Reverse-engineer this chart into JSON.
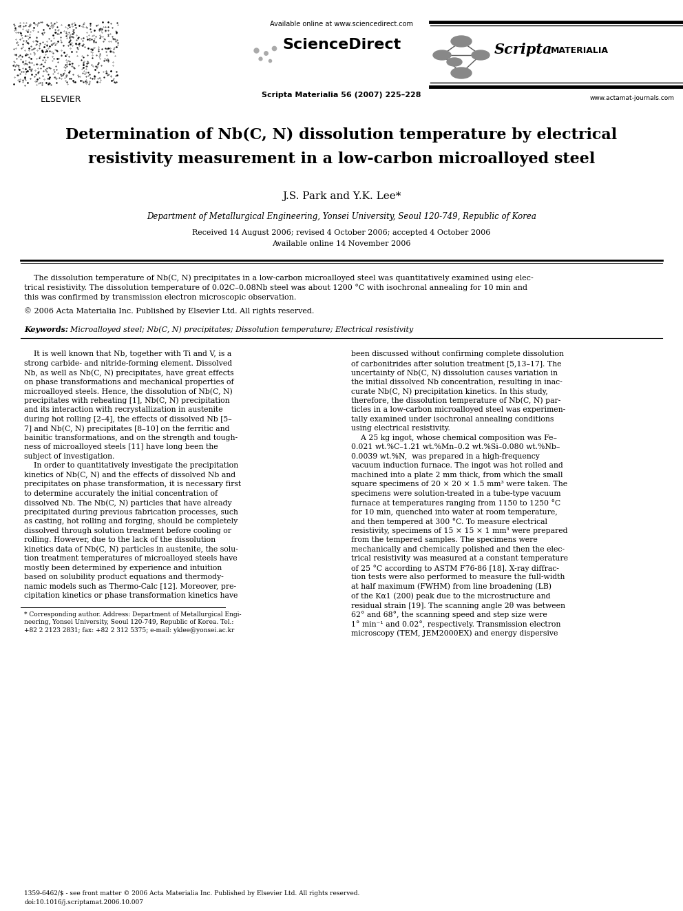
{
  "bg_color": "#ffffff",
  "page_width": 9.92,
  "page_height": 13.23,
  "dpi": 100,
  "header": {
    "available_online": "Available online at www.sciencedirect.com",
    "sciencedirect": "ScienceDirect",
    "journal_info": "Scripta Materialia 56 (2007) 225–228",
    "website": "www.actamat-journals.com",
    "elsevier_label": "ELSEVIER"
  },
  "title_line1": "Determination of Nb(C, N) dissolution temperature by electrical",
  "title_line2": "resistivity measurement in a low-carbon microalloyed steel",
  "authors": "J.S. Park and Y.K. Lee*",
  "affiliation": "Department of Metallurgical Engineering, Yonsei University, Seoul 120-749, Republic of Korea",
  "date_line1": "Received 14 August 2006; revised 4 October 2006; accepted 4 October 2006",
  "date_line2": "Available online 14 November 2006",
  "abstract_line1": "    The dissolution temperature of Nb(C, N) precipitates in a low-carbon microalloyed steel was quantitatively examined using elec-",
  "abstract_line2": "trical resistivity. The dissolution temperature of 0.02C–0.08Nb steel was about 1200 °C with isochronal annealing for 10 min and",
  "abstract_line3": "this was confirmed by transmission electron microscopic observation.",
  "abstract_line4": "© 2006 Acta Materialia Inc. Published by Elsevier Ltd. All rights reserved.",
  "keywords_label": "Keywords:",
  "keywords_text": "  Microalloyed steel; Nb(C, N) precipitates; Dissolution temperature; Electrical resistivity",
  "col1_lines": [
    "    It is well known that Nb, together with Ti and V, is a",
    "strong carbide- and nitride-forming element. Dissolved",
    "Nb, as well as Nb(C, N) precipitates, have great effects",
    "on phase transformations and mechanical properties of",
    "microalloyed steels. Hence, the dissolution of Nb(C, N)",
    "precipitates with reheating [1], Nb(C, N) precipitation",
    "and its interaction with recrystallization in austenite",
    "during hot rolling [2–4], the effects of dissolved Nb [5–",
    "7] and Nb(C, N) precipitates [8–10] on the ferritic and",
    "bainitic transformations, and on the strength and tough-",
    "ness of microalloyed steels [11] have long been the",
    "subject of investigation.",
    "    In order to quantitatively investigate the precipitation",
    "kinetics of Nb(C, N) and the effects of dissolved Nb and",
    "precipitates on phase transformation, it is necessary first",
    "to determine accurately the initial concentration of",
    "dissolved Nb. The Nb(C, N) particles that have already",
    "precipitated during previous fabrication processes, such",
    "as casting, hot rolling and forging, should be completely",
    "dissolved through solution treatment before cooling or",
    "rolling. However, due to the lack of the dissolution",
    "kinetics data of Nb(C, N) particles in austenite, the solu-",
    "tion treatment temperatures of microalloyed steels have",
    "mostly been determined by experience and intuition",
    "based on solubility product equations and thermody-",
    "namic models such as Thermo-Calc [12]. Moreover, pre-",
    "cipitation kinetics or phase transformation kinetics have"
  ],
  "col2_lines": [
    "been discussed without confirming complete dissolution",
    "of carbonitrides after solution treatment [5,13–17]. The",
    "uncertainty of Nb(C, N) dissolution causes variation in",
    "the initial dissolved Nb concentration, resulting in inac-",
    "curate Nb(C, N) precipitation kinetics. In this study,",
    "therefore, the dissolution temperature of Nb(C, N) par-",
    "ticles in a low-carbon microalloyed steel was experimen-",
    "tally examined under isochronal annealing conditions",
    "using electrical resistivity.",
    "    A 25 kg ingot, whose chemical composition was Fe–",
    "0.021 wt.%C–1.21 wt.%Mn–0.2 wt.%Si–0.080 wt.%Nb–",
    "0.0039 wt.%N,  was prepared in a high-frequency",
    "vacuum induction furnace. The ingot was hot rolled and",
    "machined into a plate 2 mm thick, from which the small",
    "square specimens of 20 × 20 × 1.5 mm³ were taken. The",
    "specimens were solution-treated in a tube-type vacuum",
    "furnace at temperatures ranging from 1150 to 1250 °C",
    "for 10 min, quenched into water at room temperature,",
    "and then tempered at 300 °C. To measure electrical",
    "resistivity, specimens of 15 × 15 × 1 mm³ were prepared",
    "from the tempered samples. The specimens were",
    "mechanically and chemically polished and then the elec-",
    "trical resistivity was measured at a constant temperature",
    "of 25 °C according to ASTM F76-86 [18]. X-ray diffrac-",
    "tion tests were also performed to measure the full-width",
    "at half maximum (FWHM) from line broadening (LB)",
    "of the Kα1 (200) peak due to the microstructure and",
    "residual strain [19]. The scanning angle 2θ was between",
    "62° and 68°, the scanning speed and step size were",
    "1° min⁻¹ and 0.02°, respectively. Transmission electron",
    "microscopy (TEM, JEM2000EX) and energy dispersive"
  ],
  "footnote_lines": [
    "* Corresponding author. Address: Department of Metallurgical Engi-",
    "neering, Yonsei University, Seoul 120-749, Republic of Korea. Tel.:",
    "+82 2 2123 2831; fax: +82 2 312 5375; e-mail: yklee@yonsei.ac.kr"
  ],
  "footer_line1": "1359-6462/$ - see front matter © 2006 Acta Materialia Inc. Published by Elsevier Ltd. All rights reserved.",
  "footer_line2": "doi:10.1016/j.scriptamat.2006.10.007"
}
